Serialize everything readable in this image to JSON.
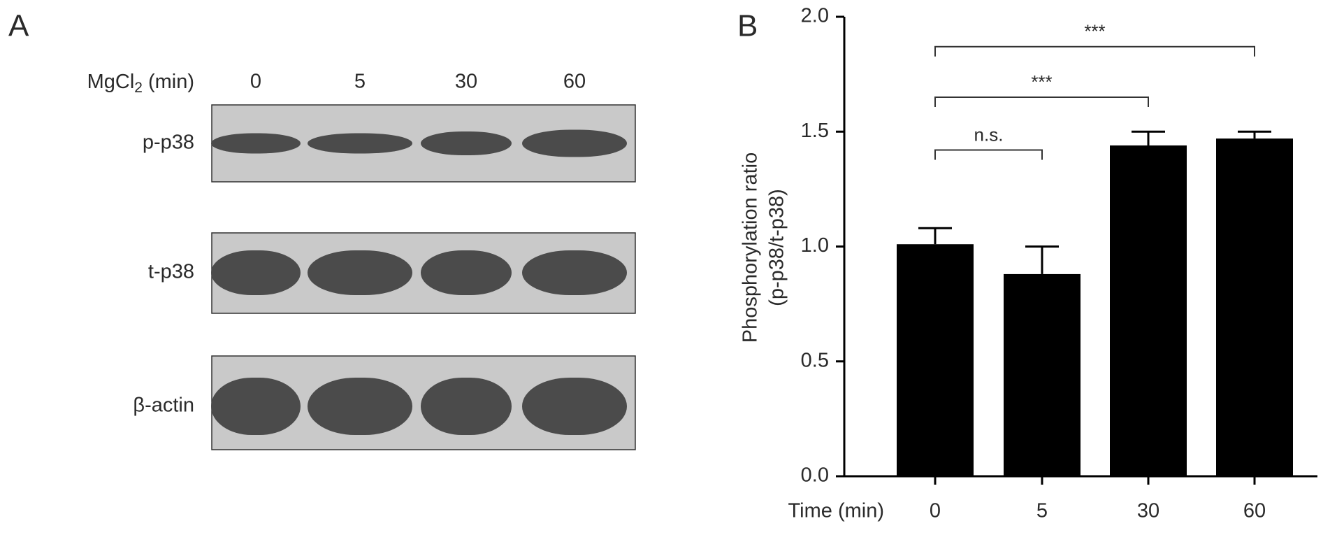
{
  "panel_a": {
    "label": "A",
    "treatment": "MgCl",
    "treatment_sub": "2",
    "treatment_unit": "(min)",
    "lanes": [
      "0",
      "5",
      "30",
      "60"
    ],
    "rows": [
      "p-p38",
      "t-p38",
      "β-actin"
    ]
  },
  "chart_data": {
    "type": "bar",
    "panel_label": "B",
    "xlabel": "Time (min)",
    "ylabel": [
      "Phosphorylation ratio",
      "(p-p38/t-p38)"
    ],
    "categories": [
      "0",
      "5",
      "30",
      "60"
    ],
    "values": [
      1.01,
      0.88,
      1.44,
      1.47
    ],
    "errors": [
      0.07,
      0.12,
      0.06,
      0.03
    ],
    "color": "#000000",
    "ylim": [
      0,
      2
    ],
    "yticks": [
      {
        "value": 0,
        "label": "0.0"
      },
      {
        "value": 0.5,
        "label": "0.5"
      },
      {
        "value": 1,
        "label": "1.0"
      },
      {
        "value": 1.5,
        "label": "1.5"
      },
      {
        "value": 2,
        "label": "2.0"
      }
    ],
    "brackets": [
      {
        "from": 0,
        "to": 1,
        "text": "n.s.",
        "y": 1.42
      },
      {
        "from": 0,
        "to": 2,
        "text": "***",
        "y": 1.65
      },
      {
        "from": 0,
        "to": 3,
        "text": "***",
        "y": 1.87
      }
    ]
  }
}
